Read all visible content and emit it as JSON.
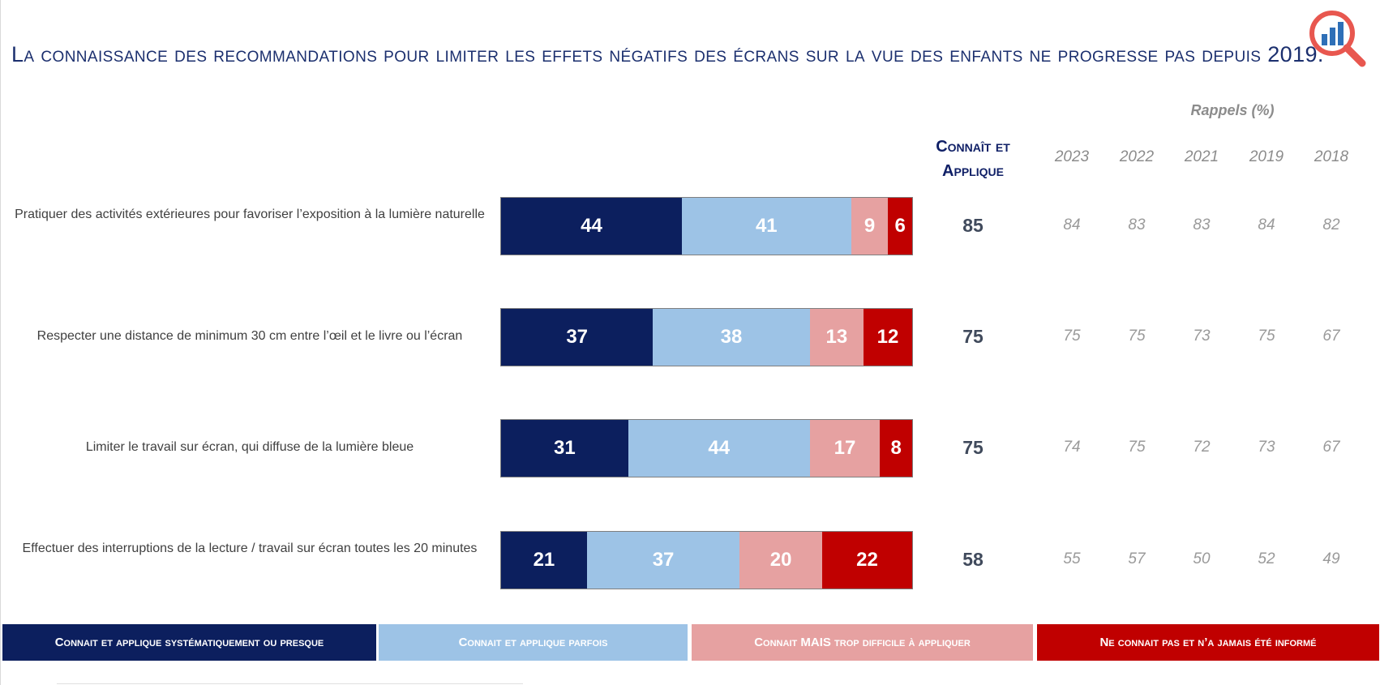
{
  "title": "La connaissance des recommandations pour limiter les effets négatifs des écrans sur la vue des enfants ne progresse pas depuis 2019.",
  "logo_icon": "magnifier-chart-icon",
  "chart_data": {
    "type": "bar",
    "orientation": "horizontal",
    "stacked": true,
    "unit": "%",
    "categories": [
      "Pratiquer des activités extérieures pour favoriser l’exposition à la lumière naturelle",
      "Respecter une distance de minimum 30 cm entre l’œil et le livre ou l’écran",
      "Limiter le travail sur écran, qui diffuse de la lumière bleue",
      "Effectuer des interruptions de la lecture / travail sur écran toutes les 20 minutes"
    ],
    "series": [
      {
        "name": "Connait et applique systématiquement ou presque",
        "color": "#0c1f5e",
        "text_color": "#ffffff",
        "values": [
          44,
          37,
          31,
          21
        ]
      },
      {
        "name": "Connait et applique parfois",
        "color": "#9dc3e6",
        "text_color": "#ffffff",
        "values": [
          41,
          38,
          44,
          37
        ]
      },
      {
        "name": "Connait MAIS trop difficile à appliquer",
        "color": "#e6a1a1",
        "text_color": "#ffffff",
        "values": [
          9,
          13,
          17,
          20
        ]
      },
      {
        "name": "Ne connait pas et n’a jamais été informé",
        "color": "#c00000",
        "text_color": "#ffffff",
        "values": [
          6,
          12,
          8,
          22
        ]
      }
    ],
    "legend_position": "bottom",
    "connait_applique": {
      "header_line1": "Connaît et",
      "header_line2": "Applique",
      "values": [
        85,
        75,
        75,
        58
      ]
    },
    "rappels": {
      "title": "Rappels (%)",
      "years": [
        "2023",
        "2022",
        "2021",
        "2019",
        "2018"
      ],
      "values": [
        [
          84,
          83,
          83,
          84,
          82
        ],
        [
          75,
          75,
          73,
          75,
          67
        ],
        [
          74,
          75,
          72,
          73,
          67
        ],
        [
          55,
          57,
          50,
          52,
          49
        ]
      ]
    }
  }
}
